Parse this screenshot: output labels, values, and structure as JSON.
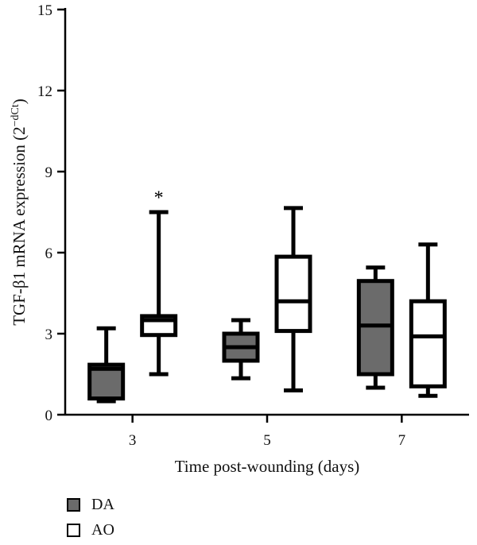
{
  "chart_data": {
    "type": "box",
    "xlabel": "Time post-wounding (days)",
    "ylabel_main": "TGF-β1 mRNA expression (2",
    "ylabel_sup": "−dCt",
    "ylabel_close": ")",
    "ylim": [
      0,
      15
    ],
    "yticks": [
      0,
      3,
      6,
      9,
      12,
      15
    ],
    "categories": [
      "3",
      "5",
      "7"
    ],
    "series": [
      {
        "name": "DA",
        "color": "#6b6b6b",
        "boxes": [
          {
            "min": 0.5,
            "q1": 0.6,
            "median": 1.7,
            "q3": 1.85,
            "max": 3.2
          },
          {
            "min": 1.35,
            "q1": 2.0,
            "median": 2.5,
            "q3": 3.0,
            "max": 3.5
          },
          {
            "min": 1.0,
            "q1": 1.5,
            "median": 3.3,
            "q3": 4.95,
            "max": 5.45
          }
        ]
      },
      {
        "name": "AO",
        "color": "#ffffff",
        "boxes": [
          {
            "min": 1.5,
            "q1": 2.95,
            "median": 3.5,
            "q3": 3.65,
            "max": 7.5
          },
          {
            "min": 0.9,
            "q1": 3.1,
            "median": 4.2,
            "q3": 5.85,
            "max": 7.65
          },
          {
            "min": 0.7,
            "q1": 1.05,
            "median": 2.9,
            "q3": 4.2,
            "max": 6.3
          }
        ]
      }
    ],
    "annotations": [
      {
        "text": "*",
        "category": "3",
        "series": "AO",
        "y": 8.1
      }
    ]
  },
  "legend": [
    {
      "label": "DA",
      "color": "#6b6b6b"
    },
    {
      "label": "AO",
      "color": "#ffffff"
    }
  ]
}
